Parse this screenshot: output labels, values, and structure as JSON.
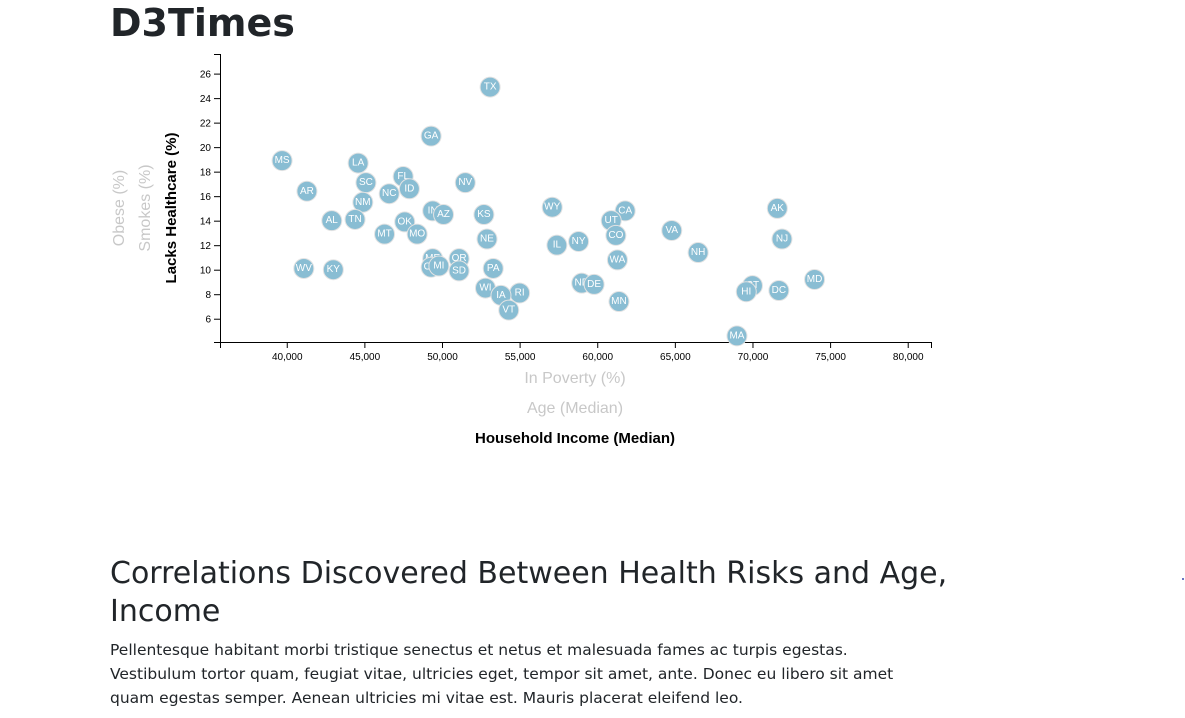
{
  "header": {
    "title": "D3Times"
  },
  "chart_data": {
    "type": "scatter",
    "xlabel": "Household Income (Median)",
    "ylabel": "Lacks Healthcare (%)",
    "x_axis_options": [
      {
        "label": "In Poverty (%)",
        "active": false
      },
      {
        "label": "Age (Median)",
        "active": false
      },
      {
        "label": "Household Income (Median)",
        "active": true
      }
    ],
    "y_axis_options": [
      {
        "label": "Lacks Healthcare (%)",
        "active": true
      },
      {
        "label": "Smokes (%)",
        "active": false
      },
      {
        "label": "Obese (%)",
        "active": false
      }
    ],
    "xlim": [
      35700,
      81500
    ],
    "ylim": [
      4.1,
      27.6
    ],
    "x_ticks": [
      40000,
      45000,
      50000,
      55000,
      60000,
      65000,
      70000,
      75000,
      80000
    ],
    "x_tick_labels": [
      "40,000",
      "45,000",
      "50,000",
      "55,000",
      "60,000",
      "65,000",
      "70,000",
      "75,000",
      "80,000"
    ],
    "y_ticks": [
      6,
      8,
      10,
      12,
      14,
      16,
      18,
      20,
      22,
      24,
      26
    ],
    "y_tick_labels": [
      "6",
      "8",
      "10",
      "12",
      "14",
      "16",
      "18",
      "20",
      "22",
      "24",
      "26"
    ],
    "points_color": "#89bdd3",
    "label_color": "#ffffff",
    "points": [
      {
        "abbr": "TX",
        "x": 53100,
        "y": 24.9
      },
      {
        "abbr": "GA",
        "x": 49300,
        "y": 20.9
      },
      {
        "abbr": "MS",
        "x": 39700,
        "y": 18.9
      },
      {
        "abbr": "LA",
        "x": 44600,
        "y": 18.7
      },
      {
        "abbr": "FL",
        "x": 47500,
        "y": 17.6
      },
      {
        "abbr": "SC",
        "x": 45100,
        "y": 17.1
      },
      {
        "abbr": "ID",
        "x": 47900,
        "y": 16.6
      },
      {
        "abbr": "NV",
        "x": 51500,
        "y": 17.1
      },
      {
        "abbr": "AR",
        "x": 41300,
        "y": 16.4
      },
      {
        "abbr": "NC",
        "x": 46600,
        "y": 16.2
      },
      {
        "abbr": "NM",
        "x": 44900,
        "y": 15.5
      },
      {
        "abbr": "WY",
        "x": 57100,
        "y": 15.1
      },
      {
        "abbr": "AK",
        "x": 71600,
        "y": 15.0
      },
      {
        "abbr": "CA",
        "x": 61800,
        "y": 14.8
      },
      {
        "abbr": "IN",
        "x": 49400,
        "y": 14.8
      },
      {
        "abbr": "AZ",
        "x": 50100,
        "y": 14.5
      },
      {
        "abbr": "KS",
        "x": 52700,
        "y": 14.5
      },
      {
        "abbr": "AL",
        "x": 42900,
        "y": 14.0
      },
      {
        "abbr": "TN",
        "x": 44400,
        "y": 14.1
      },
      {
        "abbr": "OK",
        "x": 47600,
        "y": 13.9
      },
      {
        "abbr": "UT",
        "x": 60900,
        "y": 14.0
      },
      {
        "abbr": "VA",
        "x": 64800,
        "y": 13.2
      },
      {
        "abbr": "MT",
        "x": 46300,
        "y": 12.9
      },
      {
        "abbr": "MO",
        "x": 48400,
        "y": 12.9
      },
      {
        "abbr": "CO",
        "x": 61200,
        "y": 12.8
      },
      {
        "abbr": "NJ",
        "x": 71900,
        "y": 12.5
      },
      {
        "abbr": "NE",
        "x": 52900,
        "y": 12.5
      },
      {
        "abbr": "NY",
        "x": 58800,
        "y": 12.3
      },
      {
        "abbr": "IL",
        "x": 57400,
        "y": 12.0
      },
      {
        "abbr": "NH",
        "x": 66500,
        "y": 11.4
      },
      {
        "abbr": "ME",
        "x": 49400,
        "y": 10.9
      },
      {
        "abbr": "OR",
        "x": 51100,
        "y": 10.9
      },
      {
        "abbr": "WA",
        "x": 61300,
        "y": 10.8
      },
      {
        "abbr": "WV",
        "x": 41100,
        "y": 10.1
      },
      {
        "abbr": "KY",
        "x": 43000,
        "y": 10.0
      },
      {
        "abbr": "OH",
        "x": 49300,
        "y": 10.2
      },
      {
        "abbr": "MI",
        "x": 49800,
        "y": 10.3
      },
      {
        "abbr": "PA",
        "x": 53300,
        "y": 10.1
      },
      {
        "abbr": "SD",
        "x": 51100,
        "y": 9.9
      },
      {
        "abbr": "MD",
        "x": 74000,
        "y": 9.2
      },
      {
        "abbr": "ND",
        "x": 59000,
        "y": 8.9
      },
      {
        "abbr": "DE",
        "x": 59800,
        "y": 8.8
      },
      {
        "abbr": "CT",
        "x": 70000,
        "y": 8.7
      },
      {
        "abbr": "WI",
        "x": 52800,
        "y": 8.5
      },
      {
        "abbr": "HI",
        "x": 69600,
        "y": 8.2
      },
      {
        "abbr": "DC",
        "x": 71700,
        "y": 8.3
      },
      {
        "abbr": "RI",
        "x": 55000,
        "y": 8.1
      },
      {
        "abbr": "IA",
        "x": 53800,
        "y": 7.9
      },
      {
        "abbr": "MN",
        "x": 61400,
        "y": 7.4
      },
      {
        "abbr": "VT",
        "x": 54300,
        "y": 6.7
      },
      {
        "abbr": "MA",
        "x": 69000,
        "y": 4.6
      }
    ]
  },
  "article": {
    "heading": "Correlations Discovered Between Health Risks and Age, Income",
    "body": "Pellentesque habitant morbi tristique senectus et netus et malesuada fames ac turpis egestas. Vestibulum tortor quam, feugiat vitae, ultricies eget, tempor sit amet, ante. Donec eu libero sit amet quam egestas semper. Aenean ultricies mi vitae est. Mauris placerat eleifend leo."
  }
}
